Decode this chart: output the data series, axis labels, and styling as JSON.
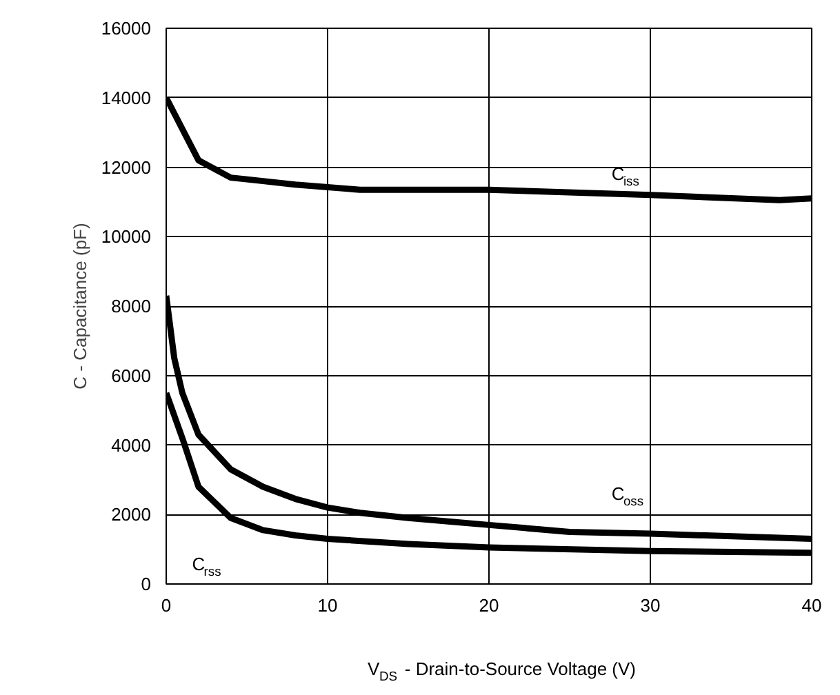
{
  "chart_data": {
    "type": "line",
    "xlabel": "V$_{DS}$ - Drain-to-Source Voltage (V)",
    "ylabel": "C - Capacitance (pF)",
    "xlim": [
      0,
      40
    ],
    "ylim": [
      0,
      16000
    ],
    "xticks": [
      0,
      10,
      20,
      30,
      40
    ],
    "yticks": [
      0,
      2000,
      4000,
      6000,
      8000,
      10000,
      12000,
      14000,
      16000
    ],
    "grid": true,
    "marker": "none",
    "line_style": "solid",
    "series": [
      {
        "name": "C$_{iss}$",
        "color": "#000000",
        "x": [
          0,
          2,
          4,
          6,
          8,
          12,
          20,
          30,
          38,
          40
        ],
        "values": [
          14000,
          12200,
          11700,
          11600,
          11500,
          11350,
          11350,
          11200,
          11050,
          11100
        ]
      },
      {
        "name": "C$_{oss}$",
        "color": "#000000",
        "x": [
          0,
          0.5,
          1,
          2,
          4,
          6,
          8,
          10,
          12,
          15,
          20,
          25,
          30,
          40
        ],
        "values": [
          8300,
          6500,
          5500,
          4300,
          3300,
          2800,
          2450,
          2200,
          2050,
          1900,
          1700,
          1500,
          1450,
          1300
        ]
      },
      {
        "name": "C$_{rss}$",
        "color": "#000000",
        "x": [
          0,
          1,
          2,
          4,
          6,
          8,
          10,
          15,
          20,
          30,
          40
        ],
        "values": [
          5500,
          4200,
          2800,
          1900,
          1550,
          1400,
          1300,
          1150,
          1050,
          950,
          900
        ]
      }
    ]
  }
}
